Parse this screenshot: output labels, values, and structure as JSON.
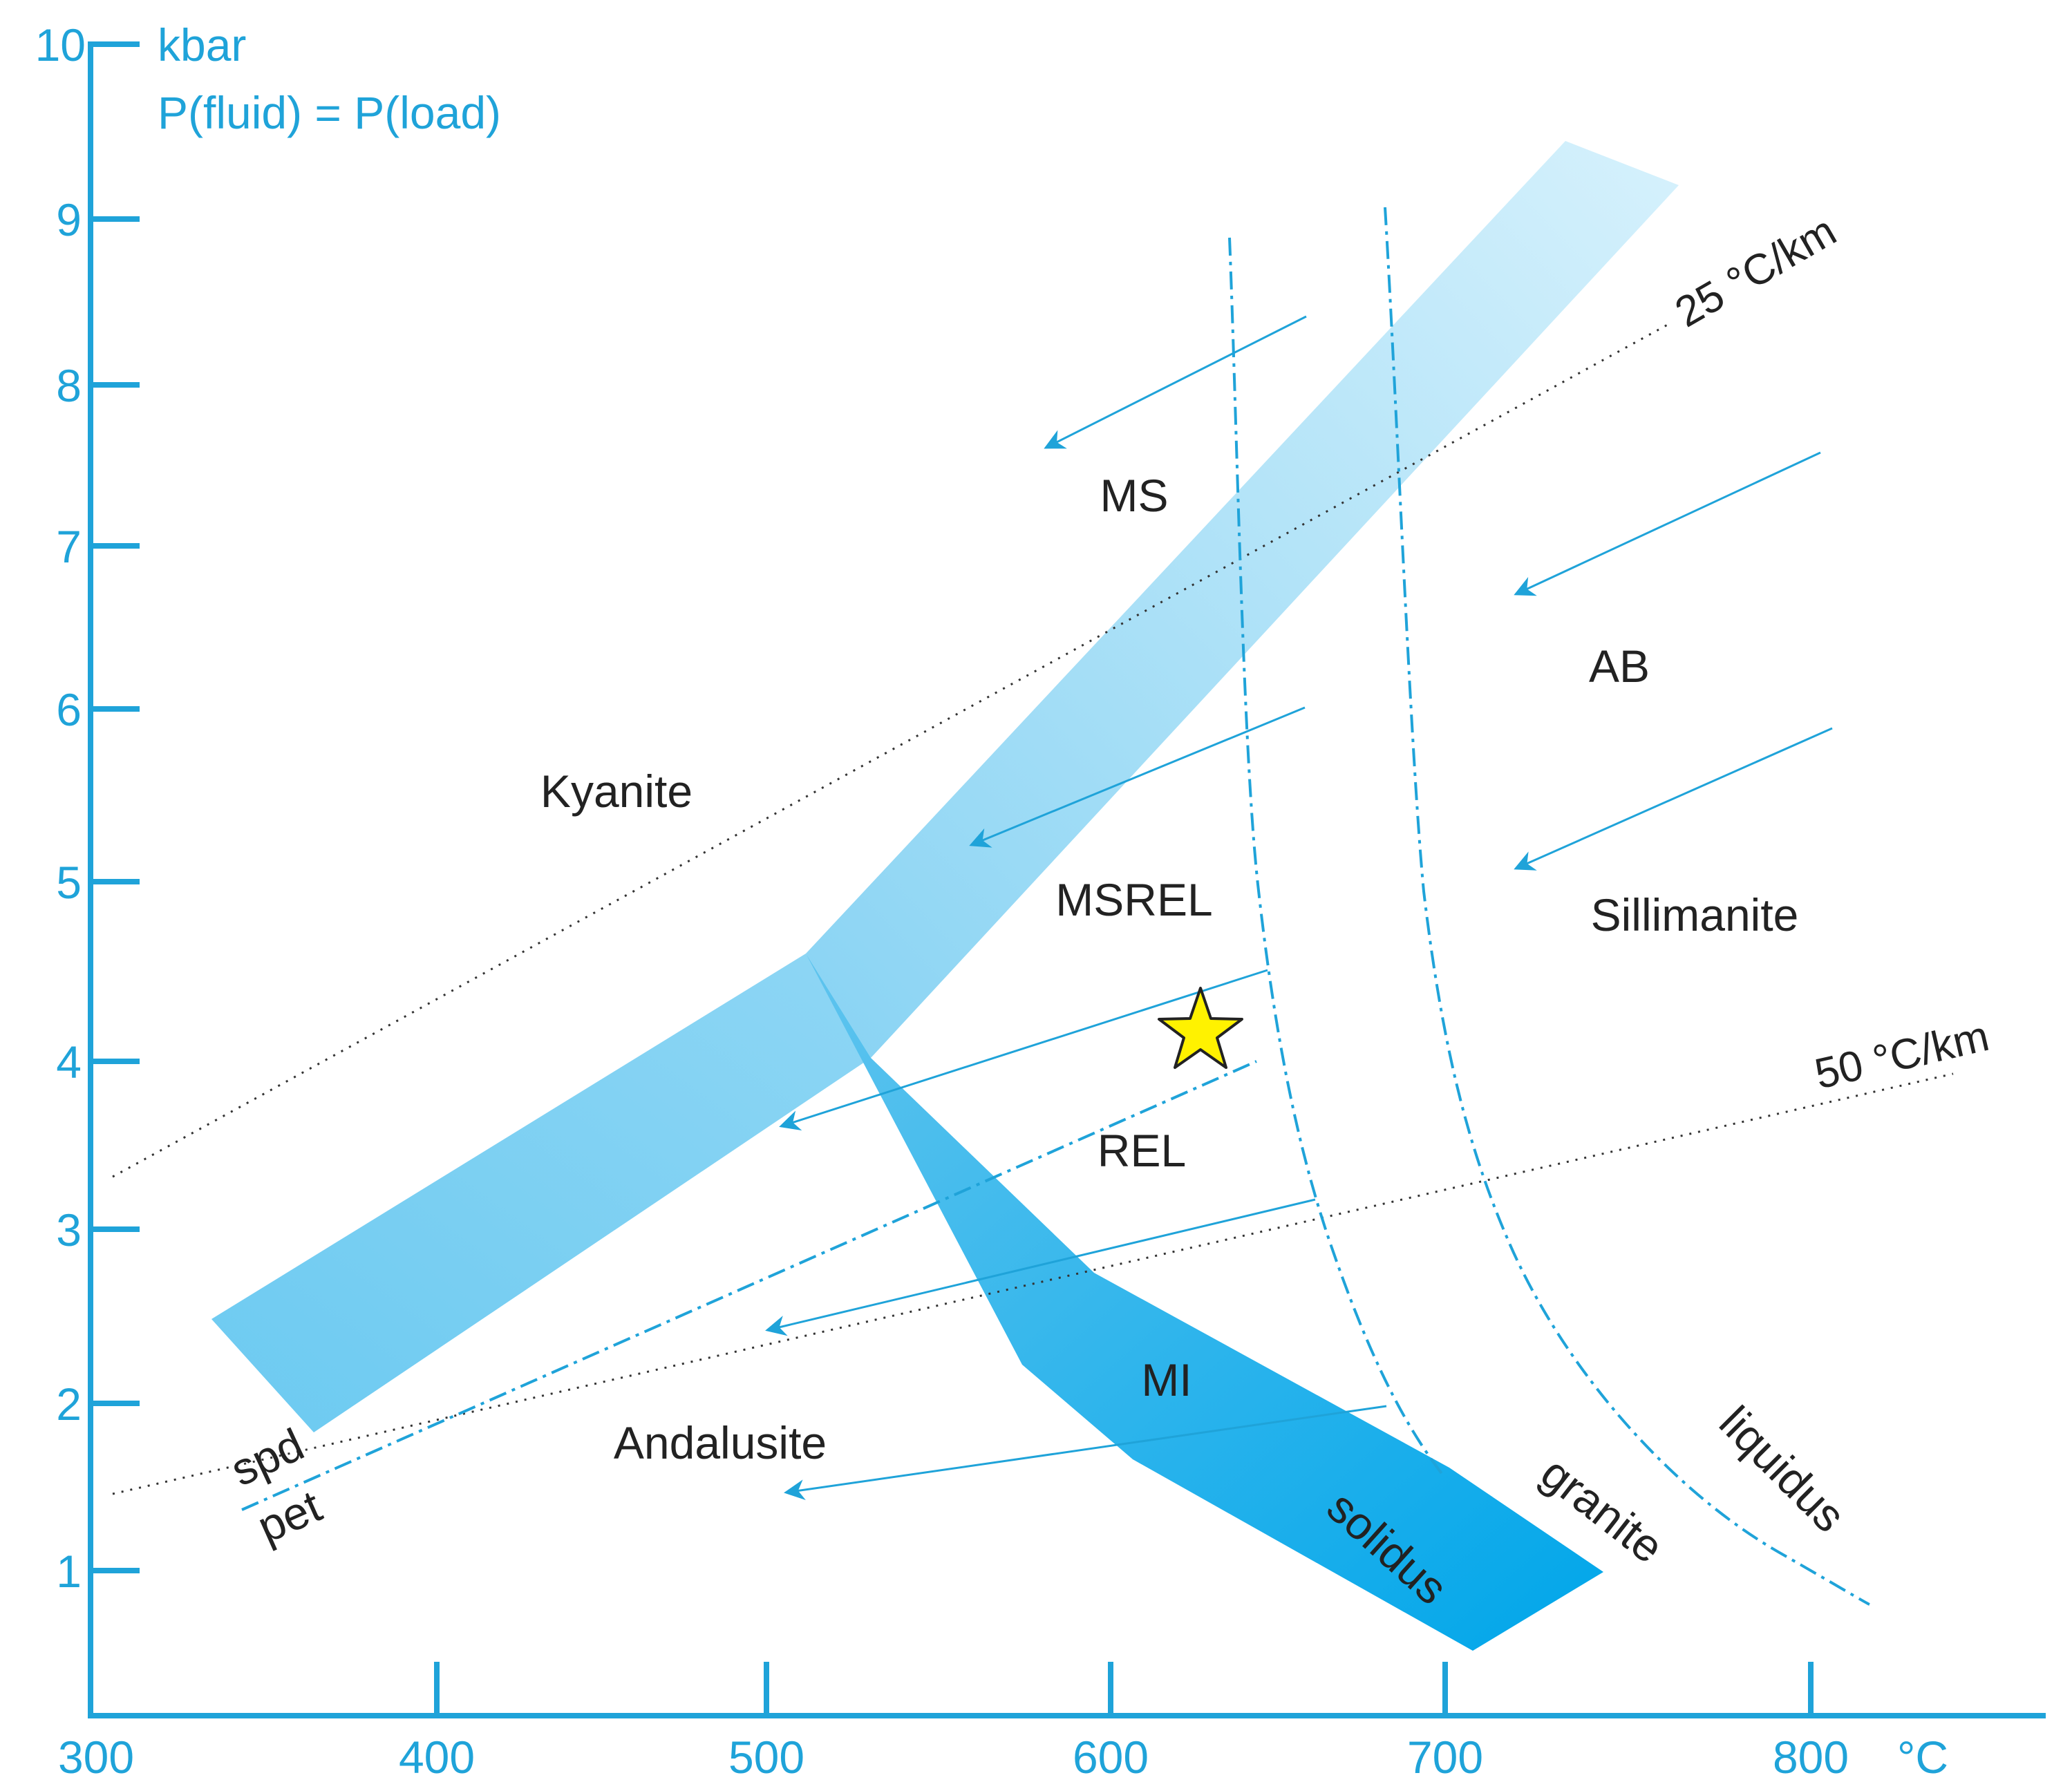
{
  "y_axis": {
    "unit_label": "kbar",
    "subtitle": "P(fluid) = P(load)",
    "ticks": [
      "1",
      "2",
      "3",
      "4",
      "5",
      "6",
      "7",
      "8",
      "9",
      "10"
    ]
  },
  "x_axis": {
    "unit_label": "°C",
    "ticks": [
      "300",
      "400",
      "500",
      "600",
      "700",
      "800"
    ]
  },
  "regions": {
    "kyanite": "Kyanite",
    "andalusite": "Andalusite",
    "sillimanite": "Sillimanite",
    "ms": "MS",
    "msrel": "MSREL",
    "rel": "REL",
    "mi": "MI",
    "ab": "AB"
  },
  "curves": {
    "solidus": "solidus",
    "granite": "granite",
    "liquidus": "liquidus",
    "spd": "spd",
    "pet": "pet"
  },
  "geotherms": {
    "g25": "25 °C/km",
    "g50": "50 °C/km"
  },
  "colors": {
    "axis": "#1fa3d9",
    "text": "#222222",
    "band_light": "#cfeefb",
    "band_mid": "#85d2f3",
    "band_dark": "#0aa8ea",
    "star": "#fff200"
  },
  "marker": {
    "symbol": "star",
    "temperature_c": 628,
    "pressure_kbar": 4.15
  }
}
